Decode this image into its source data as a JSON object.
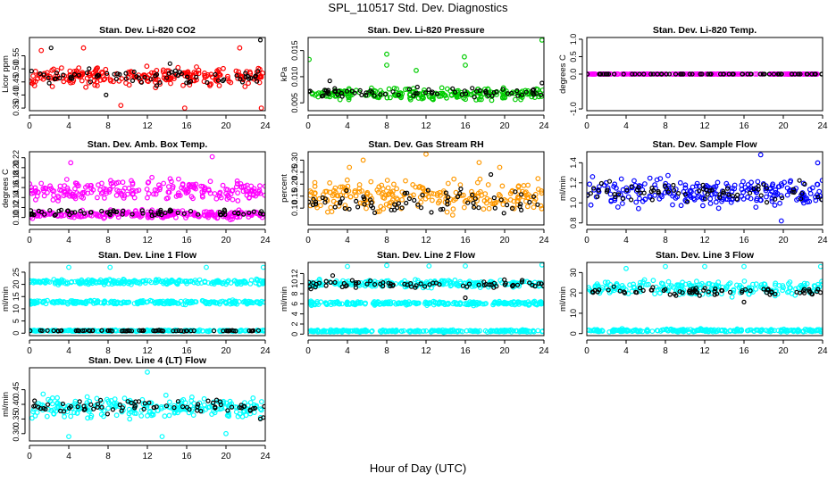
{
  "title": "SPL_110517  Std. Dev. Diagnostics",
  "xlabel": "Hour of Day (UTC)",
  "x_ticks": [
    "0",
    "4",
    "8",
    "12",
    "16",
    "20",
    "24"
  ],
  "chart_data": [
    {
      "type": "scatter",
      "title": "Stan. Dev. Li-820 CO2",
      "xlabel": "",
      "ylabel": "Licor ppm",
      "xlim": [
        0,
        24
      ],
      "ylim": [
        0.34,
        0.62
      ],
      "y_ticks": [
        "0.35",
        "0.40",
        "0.45",
        "0.50",
        "0.55"
      ],
      "y_tick_values": [
        0.35,
        0.4,
        0.45,
        0.5,
        0.55
      ],
      "grid": false,
      "series": [
        {
          "color": "#ff0000",
          "band": [
            0.42,
            0.52
          ],
          "outliers": [
            [
              1.2,
              0.57
            ],
            [
              5.5,
              0.58
            ],
            [
              9.3,
              0.36
            ],
            [
              15.8,
              0.35
            ],
            [
              21.4,
              0.58
            ],
            [
              23.6,
              0.35
            ]
          ]
        },
        {
          "color": "#000000",
          "band": [
            0.43,
            0.51
          ],
          "outliers": [
            [
              2.2,
              0.58
            ],
            [
              23.5,
              0.61
            ],
            [
              7.8,
              0.4
            ],
            [
              14.3,
              0.52
            ]
          ]
        }
      ]
    },
    {
      "type": "scatter",
      "title": "Stan. Dev. Li-820 Pressure",
      "xlabel": "",
      "ylabel": "kPa",
      "xlim": [
        0,
        24
      ],
      "ylim": [
        0.0035,
        0.0175
      ],
      "y_ticks": [
        "0.005",
        "0.010",
        "0.015"
      ],
      "y_tick_values": [
        0.005,
        0.01,
        0.015
      ],
      "grid": false,
      "series": [
        {
          "color": "#00cc00",
          "band": [
            0.0052,
            0.0082
          ],
          "outliers": [
            [
              0.1,
              0.0133
            ],
            [
              8.0,
              0.0143
            ],
            [
              8.0,
              0.0122
            ],
            [
              11.0,
              0.0112
            ],
            [
              15.9,
              0.0138
            ],
            [
              16.0,
              0.0122
            ],
            [
              23.8,
              0.017
            ]
          ]
        },
        {
          "color": "#000000",
          "band": [
            0.0056,
            0.0082
          ],
          "outliers": [
            [
              2.2,
              0.0092
            ],
            [
              23.8,
              0.0088
            ]
          ]
        }
      ]
    },
    {
      "type": "scatter",
      "title": "Stan. Dev. Li-820 Temp.",
      "xlabel": "",
      "ylabel": "degrees C",
      "xlim": [
        0,
        24
      ],
      "ylim": [
        -1.05,
        1.05
      ],
      "y_ticks": [
        "-1.0",
        "0.0",
        "0.5",
        "1.0"
      ],
      "y_tick_values": [
        -1.0,
        0.0,
        0.5,
        1.0
      ],
      "grid": false,
      "series": [
        {
          "color": "#ff00ff",
          "band": [
            0.0,
            0.0
          ],
          "outliers": []
        },
        {
          "color": "#000000",
          "band": [
            0.0,
            0.0
          ],
          "outliers": []
        }
      ]
    },
    {
      "type": "scatter",
      "title": "Stan. Dev. Amb. Box Temp.",
      "xlabel": "",
      "ylabel": "degrees C",
      "xlim": [
        0,
        24
      ],
      "ylim": [
        0.085,
        0.232
      ],
      "y_ticks": [
        "0.10",
        "0.12",
        "0.14",
        "0.16",
        "0.18",
        "0.20",
        "0.22"
      ],
      "y_tick_values": [
        0.1,
        0.12,
        0.14,
        0.16,
        0.18,
        0.2,
        0.22
      ],
      "grid": false,
      "series": [
        {
          "color": "#ff00ff",
          "band": [
            0.125,
            0.185
          ],
          "outliers": [
            [
              0.3,
              0.098
            ],
            [
              4.2,
              0.21
            ],
            [
              18.6,
              0.222
            ],
            [
              23.7,
              0.1
            ]
          ]
        },
        {
          "color": "#ff00ff",
          "band": [
            0.094,
            0.118
          ],
          "outliers": []
        },
        {
          "color": "#000000",
          "band": [
            0.1,
            0.12
          ],
          "outliers": []
        }
      ]
    },
    {
      "type": "scatter",
      "title": "Stan. Dev. Gas Stream RH",
      "xlabel": "",
      "ylabel": "percent",
      "xlim": [
        0,
        24
      ],
      "ylim": [
        0.03,
        0.335
      ],
      "y_ticks": [
        "0.10",
        "0.15",
        "0.20",
        "0.25",
        "0.30"
      ],
      "y_tick_values": [
        0.1,
        0.15,
        0.2,
        0.25,
        0.3
      ],
      "grid": false,
      "series": [
        {
          "color": "#ff9900",
          "band": [
            0.06,
            0.24
          ],
          "outliers": [
            [
              4.2,
              0.27
            ],
            [
              5.6,
              0.3
            ],
            [
              12.0,
              0.325
            ],
            [
              17.4,
              0.29
            ],
            [
              19.5,
              0.27
            ]
          ]
        },
        {
          "color": "#000000",
          "band": [
            0.06,
            0.2
          ],
          "outliers": [
            [
              18.6,
              0.24
            ]
          ]
        }
      ]
    },
    {
      "type": "scatter",
      "title": "Stan. Dev. Sample Flow",
      "xlabel": "",
      "ylabel": "ml/min",
      "xlim": [
        0,
        24
      ],
      "ylim": [
        0.78,
        1.51
      ],
      "y_ticks": [
        "0.8",
        "1.0",
        "1.2",
        "1.4"
      ],
      "y_tick_values": [
        0.8,
        1.0,
        1.2,
        1.4
      ],
      "grid": false,
      "series": [
        {
          "color": "#0000ff",
          "band": [
            0.9,
            1.3
          ],
          "outliers": [
            [
              17.7,
              1.48
            ],
            [
              19.8,
              0.82
            ],
            [
              23.5,
              1.4
            ]
          ]
        },
        {
          "color": "#000000",
          "band": [
            0.95,
            1.25
          ],
          "outliers": []
        }
      ]
    },
    {
      "type": "scatter",
      "title": "Stan. Dev. Line 1 Flow",
      "xlabel": "",
      "ylabel": "ml/min",
      "xlim": [
        0,
        24
      ],
      "ylim": [
        -1,
        29
      ],
      "y_ticks": [
        "0",
        "5",
        "10",
        "15",
        "20",
        "25"
      ],
      "y_tick_values": [
        0,
        5,
        10,
        15,
        20,
        25
      ],
      "grid": false,
      "series": [
        {
          "color": "#00ffff",
          "band": [
            19.5,
            22.5
          ],
          "outliers": [
            [
              4.0,
              27
            ],
            [
              8.2,
              27
            ],
            [
              18.0,
              27
            ],
            [
              23.8,
              27
            ]
          ]
        },
        {
          "color": "#00ffff",
          "band": [
            11.5,
            13.8
          ],
          "outliers": []
        },
        {
          "color": "#00ffff",
          "band": [
            0.6,
            1.4
          ],
          "outliers": []
        },
        {
          "color": "#000000",
          "band": [
            0.7,
            1.3
          ],
          "outliers": []
        }
      ]
    },
    {
      "type": "scatter",
      "title": "Stan. Dev. Line 2 Flow",
      "xlabel": "",
      "ylabel": "ml/min",
      "xlim": [
        0,
        24
      ],
      "ylim": [
        -0.3,
        14.2
      ],
      "y_ticks": [
        "0",
        "2",
        "4",
        "6",
        "8",
        "10",
        "12"
      ],
      "y_tick_values": [
        0,
        2,
        4,
        6,
        8,
        10,
        12
      ],
      "grid": false,
      "series": [
        {
          "color": "#00ffff",
          "band": [
            9.0,
            11.0
          ],
          "outliers": [
            [
              4.0,
              13.4
            ],
            [
              8.0,
              13.6
            ],
            [
              12.3,
              13.5
            ],
            [
              16.0,
              13.5
            ],
            [
              23.8,
              13.7
            ]
          ]
        },
        {
          "color": "#00ffff",
          "band": [
            5.6,
            6.6
          ],
          "outliers": []
        },
        {
          "color": "#00ffff",
          "band": [
            0.3,
            0.9
          ],
          "outliers": []
        },
        {
          "color": "#000000",
          "band": [
            8.6,
            11.0
          ],
          "outliers": [
            [
              16.0,
              7.2
            ],
            [
              2.5,
              11.6
            ]
          ]
        }
      ]
    },
    {
      "type": "scatter",
      "title": "Stan. Dev. Line 3 Flow",
      "xlabel": "",
      "ylabel": "ml/min",
      "xlim": [
        0,
        24
      ],
      "ylim": [
        -1,
        35
      ],
      "y_ticks": [
        "0",
        "10",
        "20",
        "30"
      ],
      "y_tick_values": [
        0,
        10,
        20,
        30
      ],
      "grid": false,
      "series": [
        {
          "color": "#00ffff",
          "band": [
            17,
            28
          ],
          "outliers": [
            [
              4.0,
              32
            ],
            [
              8.0,
              33
            ],
            [
              12.0,
              33
            ],
            [
              16.0,
              33
            ],
            [
              23.8,
              33
            ]
          ]
        },
        {
          "color": "#00ffff",
          "band": [
            0.5,
            2.5
          ],
          "outliers": []
        },
        {
          "color": "#000000",
          "band": [
            18,
            24
          ],
          "outliers": [
            [
              16.0,
              15.5
            ]
          ]
        }
      ]
    },
    {
      "type": "scatter",
      "title": "Stan. Dev. Line 4 (LT) Flow",
      "xlabel": "",
      "ylabel": "ml/min",
      "xlim": [
        0,
        24
      ],
      "ylim": [
        0.275,
        0.525
      ],
      "y_ticks": [
        "0.30",
        "0.35",
        "0.40",
        "0.45"
      ],
      "y_tick_values": [
        0.3,
        0.35,
        0.4,
        0.45
      ],
      "grid": false,
      "series": [
        {
          "color": "#00ffff",
          "band": [
            0.34,
            0.44
          ],
          "outliers": [
            [
              4.0,
              0.29
            ],
            [
              12.0,
              0.51
            ],
            [
              13.5,
              0.29
            ],
            [
              20.0,
              0.3
            ]
          ]
        },
        {
          "color": "#000000",
          "band": [
            0.36,
            0.43
          ],
          "outliers": [
            [
              23.8,
              0.355
            ],
            [
              23.5,
              0.35
            ]
          ]
        }
      ]
    }
  ]
}
